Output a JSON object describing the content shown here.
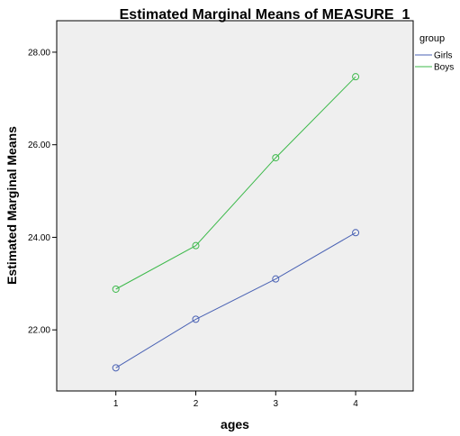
{
  "chart_data": {
    "type": "line",
    "title": "Estimated Marginal Means of MEASURE_1",
    "xlabel": "ages",
    "ylabel": "Estimated Marginal Means",
    "x": [
      1,
      2,
      3,
      4
    ],
    "x_tick_labels": [
      "1",
      "2",
      "3",
      "4"
    ],
    "y_ticks": [
      22,
      24,
      26,
      28
    ],
    "y_tick_labels": [
      "22.00",
      "24.00",
      "26.00",
      "28.00"
    ],
    "xlim": [
      0.26,
      4.72
    ],
    "ylim": [
      20.68,
      28.68
    ],
    "grid": false,
    "legend": {
      "title": "group",
      "position": "right"
    },
    "series": [
      {
        "name": "Girls",
        "color": "#4a62b4",
        "values": [
          21.18,
          22.23,
          23.1,
          24.1
        ]
      },
      {
        "name": "Boys",
        "color": "#3cb94a",
        "values": [
          22.88,
          23.82,
          25.72,
          27.47
        ]
      }
    ]
  },
  "colors": {
    "plot_background": "#efefef",
    "axis": "#000000"
  }
}
